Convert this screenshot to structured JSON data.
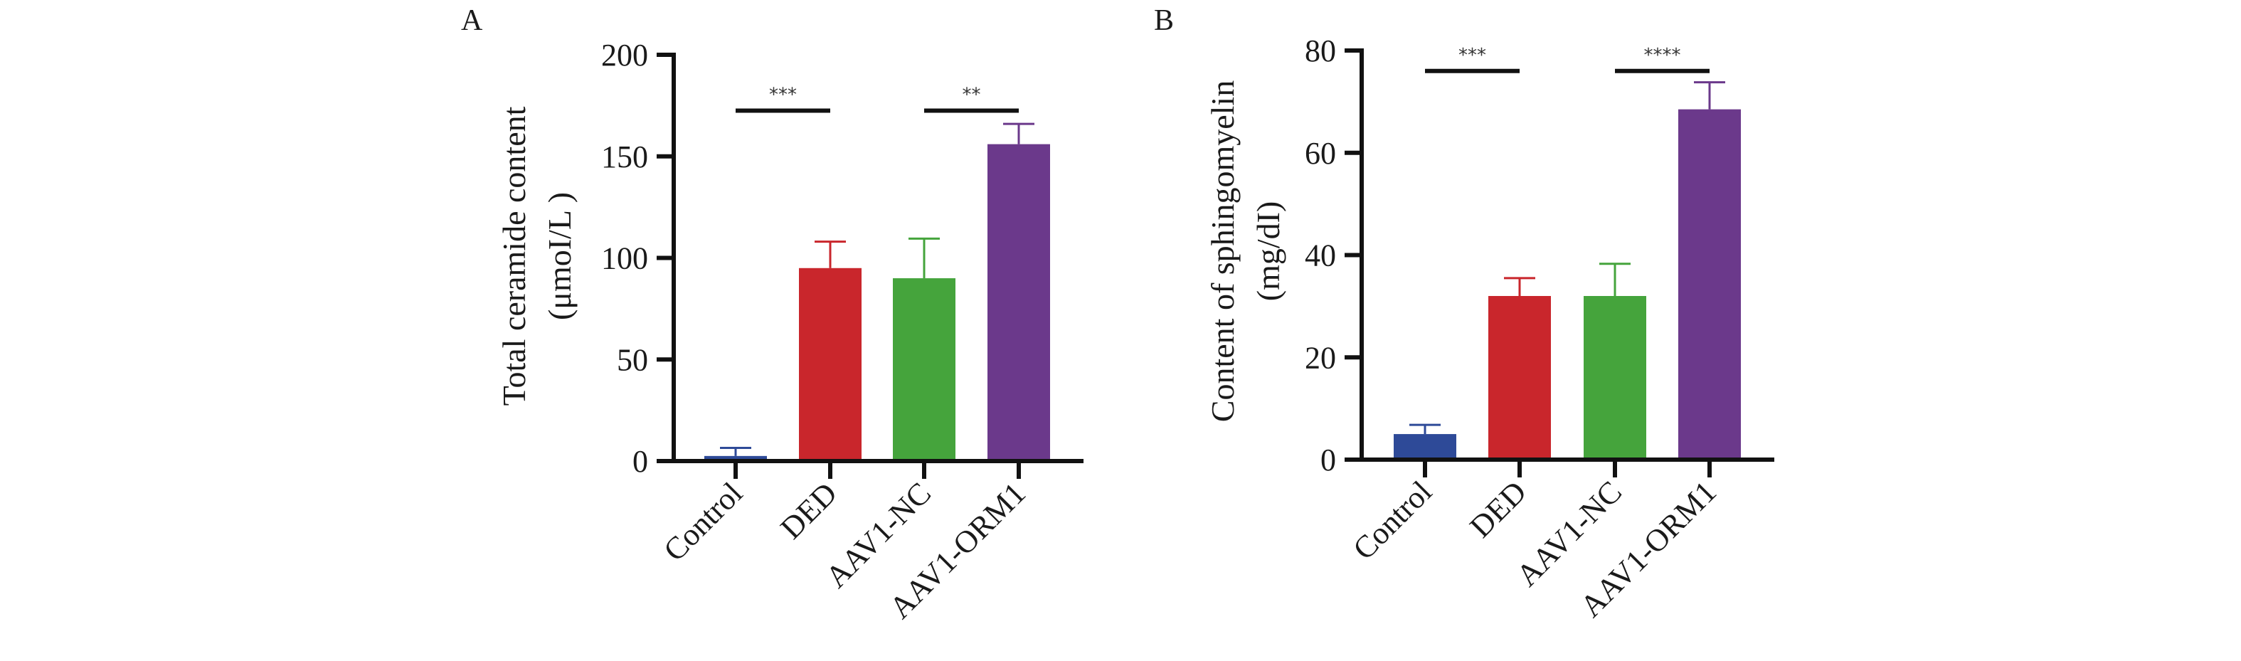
{
  "chart_data": [
    {
      "panel": "A",
      "type": "bar",
      "title": "",
      "xlabel": "",
      "ylabel": [
        "Total ceramide content",
        "(μmoI/L )"
      ],
      "ylim": [
        0,
        200
      ],
      "yticks": [
        0,
        50,
        100,
        150,
        200
      ],
      "categories": [
        "Control",
        "DED",
        "AAV1-NC",
        "AAV1-ORM1"
      ],
      "values": [
        2.5,
        95,
        90,
        156
      ],
      "error_upper": [
        6.5,
        108,
        109.5,
        166
      ],
      "colors": [
        "#2E4A98",
        "#C9262C",
        "#45A43C",
        "#6B398B"
      ],
      "significance": [
        {
          "from": 0,
          "to": 1,
          "label": "***",
          "y": 172.5
        },
        {
          "from": 2,
          "to": 3,
          "label": "**",
          "y": 172.5
        }
      ],
      "grid": false
    },
    {
      "panel": "B",
      "type": "bar",
      "title": "",
      "xlabel": "",
      "ylabel": [
        "Content of sphingomyelin",
        "(mg/dI)"
      ],
      "ylim": [
        0,
        80
      ],
      "yticks": [
        0,
        20,
        40,
        60,
        80
      ],
      "categories": [
        "Control",
        "DED",
        "AAV1-NC",
        "AAV1-ORM1"
      ],
      "values": [
        5.0,
        32,
        32,
        68.5
      ],
      "error_upper": [
        6.8,
        35.5,
        38.3,
        73.8
      ],
      "colors": [
        "#2E4A98",
        "#C9262C",
        "#45A43C",
        "#6B398B"
      ],
      "significance": [
        {
          "from": 0,
          "to": 1,
          "label": "***",
          "y": 76
        },
        {
          "from": 2,
          "to": 3,
          "label": "****",
          "y": 76
        }
      ],
      "grid": false
    }
  ]
}
